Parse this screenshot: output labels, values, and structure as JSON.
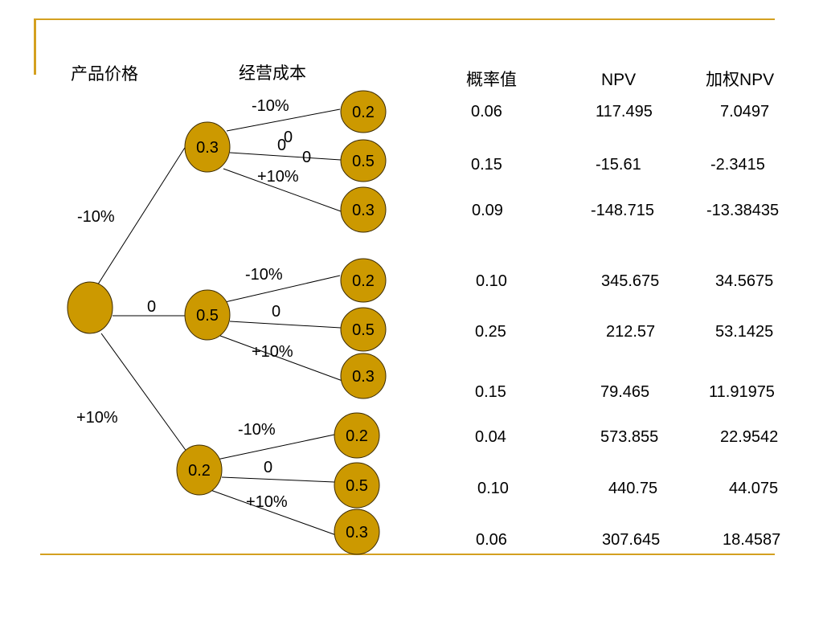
{
  "colors": {
    "accent": "#d4a020",
    "node_fill": "#cc9900",
    "node_stroke": "#3a2a00",
    "line": "#000000"
  },
  "headers": {
    "price": "产品价格",
    "cost": "经营成本",
    "prob": "概率值",
    "npv": "NPV",
    "wnpv": "加权NPV"
  },
  "branches": {
    "price": {
      "down": "-10%",
      "flat": "0",
      "up": "+10%"
    },
    "cost_group1": {
      "down": "-10%",
      "flat_a": "0",
      "flat_b": "0",
      "flat_c": "0",
      "up": "+10%"
    },
    "cost_group2": {
      "down": "-10%",
      "flat": "0",
      "up": "+10%"
    },
    "cost_group3": {
      "down": "-10%",
      "flat": "0",
      "up": "+10%"
    }
  },
  "nodes": {
    "mid": [
      "0.3",
      "0.5",
      "0.2"
    ],
    "leaves": [
      [
        "0.2",
        "0.5",
        "0.3"
      ],
      [
        "0.2",
        "0.5",
        "0.3"
      ],
      [
        "0.2",
        "0.5",
        "0.3"
      ]
    ]
  },
  "table": {
    "rows": [
      {
        "prob": "0.06",
        "npv": "117.495",
        "wnpv": "7.0497"
      },
      {
        "prob": "0.15",
        "npv": "-15.61",
        "wnpv": "-2.3415"
      },
      {
        "prob": "0.09",
        "npv": "-148.715",
        "wnpv": "-13.38435"
      },
      {
        "prob": "0.10",
        "npv": "345.675",
        "wnpv": "34.5675"
      },
      {
        "prob": "0.25",
        "npv": "212.57",
        "wnpv": "53.1425"
      },
      {
        "prob": "0.15",
        "npv": "79.465",
        "wnpv": "11.91975"
      },
      {
        "prob": "0.04",
        "npv": "573.855",
        "wnpv": "22.9542"
      },
      {
        "prob": "0.10",
        "npv": "440.75",
        "wnpv": "44.075"
      },
      {
        "prob": "0.06",
        "npv": "307.645",
        "wnpv": "18.4587"
      }
    ]
  }
}
